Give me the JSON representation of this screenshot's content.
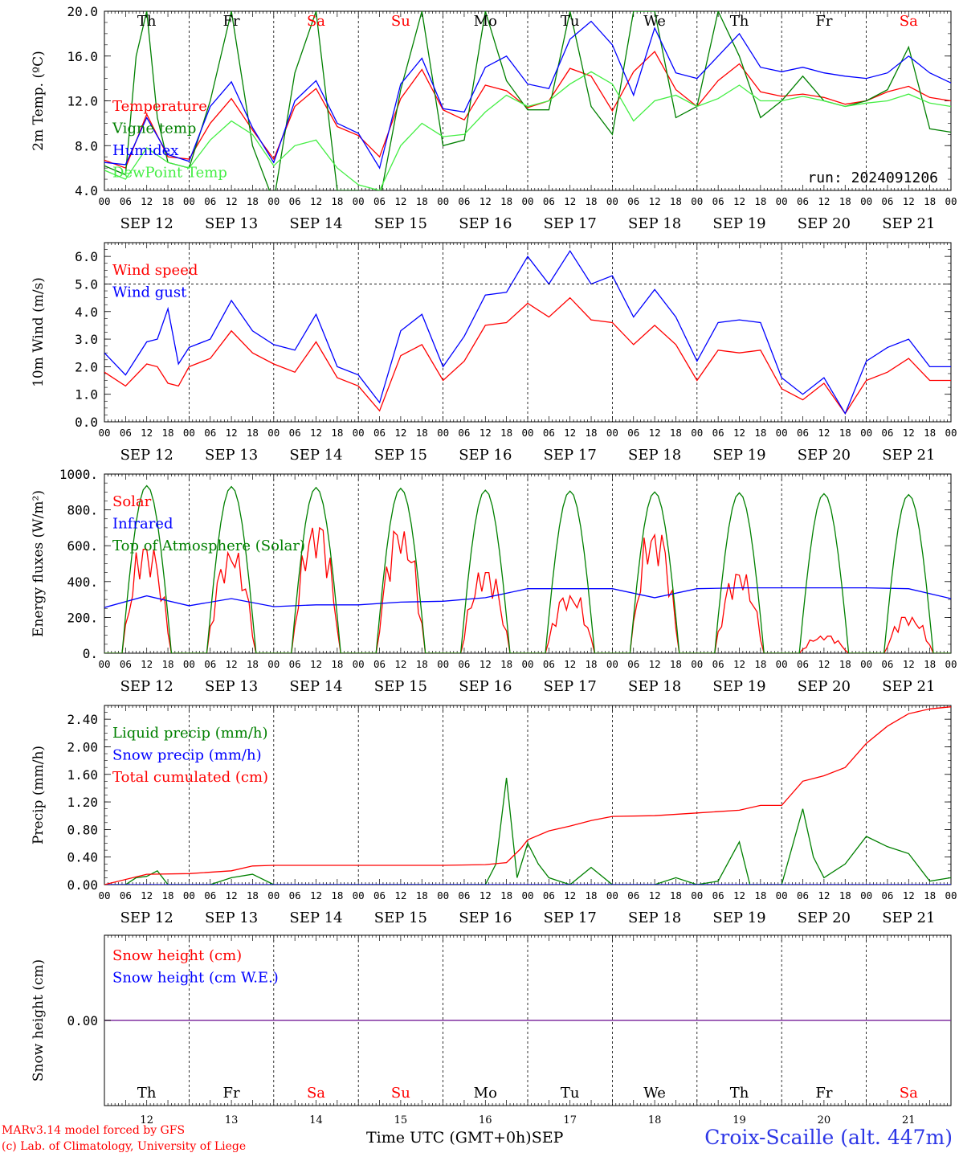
{
  "days": [
    "SEP 12",
    "SEP 13",
    "SEP 14",
    "SEP 15",
    "SEP 16",
    "SEP 17",
    "SEP 18",
    "SEP 19",
    "SEP 20",
    "SEP 21"
  ],
  "weekdays": [
    "Th",
    "Fr",
    "Sa",
    "Su",
    "Mo",
    "Tu",
    "We",
    "Th",
    "Fr",
    "Sa"
  ],
  "day_numbers": [
    "12",
    "13",
    "14",
    "15",
    "16",
    "17",
    "18",
    "19",
    "20",
    "21"
  ],
  "hour_labels": [
    "00",
    "06",
    "12",
    "18"
  ],
  "hour_label_end": "00",
  "run_label": "run: 2024091206",
  "footer": {
    "credit_line1": "MARv3.14 model forced by GFS",
    "credit_line2": "(c) Lab. of Climatology, University of Liege",
    "x_title": "Time UTC (GMT+0h)",
    "x_month": "SEP",
    "station": "Croix-Scaille (alt. 447m)"
  },
  "colors": {
    "red": "#ff0000",
    "green": "#008000",
    "blue": "#0000ff",
    "lightgreen": "#44ee44",
    "weekend": "#ff0000",
    "station": "#2c36e6",
    "snowline": "#8030a0"
  },
  "chart_data": [
    {
      "type": "line",
      "ylabel": "2m Temp. (ºC)",
      "ylim": [
        4,
        20
      ],
      "yticks": [
        "4.0",
        "8.0",
        "12.0",
        "16.0",
        "20.0"
      ],
      "x_unit": "hours since 2024-09-12 00 UTC",
      "series": [
        {
          "name": "Temperature",
          "color": "red",
          "x": [
            0,
            6,
            12,
            18,
            24,
            30,
            36,
            42,
            48,
            54,
            60,
            66,
            72,
            78,
            84,
            90,
            96,
            102,
            108,
            114,
            120,
            126,
            132,
            138,
            144,
            150,
            156,
            162,
            168,
            174,
            180,
            186,
            192,
            198,
            204,
            210,
            216,
            222,
            228,
            234,
            240
          ],
          "values": [
            6.7,
            6.0,
            10.8,
            7.0,
            6.8,
            10.0,
            12.2,
            9.4,
            6.8,
            11.5,
            13.1,
            9.7,
            8.9,
            7.0,
            12.2,
            14.8,
            11.2,
            10.3,
            13.4,
            12.9,
            11.4,
            12.0,
            14.9,
            14.2,
            11.1,
            14.6,
            16.4,
            13.0,
            11.5,
            13.8,
            15.3,
            12.8,
            12.4,
            12.6,
            12.3,
            11.7,
            12.0,
            12.8,
            13.3,
            12.3,
            12.0
          ]
        },
        {
          "name": "Vigne temp",
          "color": "green",
          "x": [
            0,
            6,
            9,
            12,
            15,
            18,
            24,
            30,
            36,
            42,
            48,
            54,
            60,
            66,
            72,
            78,
            84,
            90,
            96,
            102,
            108,
            114,
            120,
            126,
            132,
            138,
            144,
            150,
            156,
            162,
            168,
            174,
            180,
            186,
            192,
            198,
            204,
            210,
            216,
            222,
            228,
            234,
            240
          ],
          "values": [
            6.2,
            5.4,
            16.0,
            20.0,
            10.5,
            6.5,
            6.0,
            12.0,
            20.0,
            8.0,
            3.0,
            14.5,
            20.0,
            4.0,
            4.0,
            3.0,
            13.0,
            20.0,
            8.0,
            8.5,
            20.0,
            13.8,
            11.2,
            11.2,
            20.0,
            11.5,
            9.0,
            20.0,
            20.0,
            10.5,
            11.5,
            20.0,
            16.0,
            10.5,
            12.0,
            14.2,
            12.0,
            11.5,
            12.0,
            13.0,
            16.8,
            9.5,
            9.2
          ]
        },
        {
          "name": "Humidex",
          "color": "blue",
          "x": [
            0,
            6,
            12,
            18,
            24,
            30,
            36,
            42,
            48,
            54,
            60,
            66,
            72,
            78,
            84,
            90,
            96,
            102,
            108,
            114,
            120,
            126,
            132,
            138,
            144,
            150,
            156,
            162,
            168,
            174,
            180,
            186,
            192,
            198,
            204,
            210,
            216,
            222,
            228,
            234,
            240
          ],
          "values": [
            6.5,
            6.3,
            10.5,
            7.2,
            6.6,
            11.5,
            13.7,
            9.6,
            6.5,
            12.0,
            13.8,
            10.0,
            9.1,
            6.0,
            13.5,
            15.8,
            11.3,
            11.0,
            15.0,
            16.0,
            13.5,
            13.1,
            17.5,
            19.1,
            17.0,
            12.5,
            18.5,
            14.5,
            14.0,
            16.0,
            18.0,
            15.0,
            14.6,
            15.0,
            14.5,
            14.2,
            14.0,
            14.5,
            16.0,
            14.5,
            13.6
          ]
        },
        {
          "name": "DewPoint Temp",
          "color": "lightgreen",
          "x": [
            0,
            6,
            12,
            18,
            24,
            30,
            36,
            42,
            48,
            54,
            60,
            66,
            72,
            78,
            84,
            90,
            96,
            102,
            108,
            114,
            120,
            126,
            132,
            138,
            144,
            150,
            156,
            162,
            168,
            174,
            180,
            186,
            192,
            198,
            204,
            210,
            216,
            222,
            228,
            234,
            240
          ],
          "values": [
            5.8,
            5.0,
            7.8,
            6.5,
            6.0,
            8.5,
            10.2,
            9.0,
            6.2,
            8.0,
            8.5,
            6.0,
            4.5,
            4.0,
            8.0,
            10.0,
            8.8,
            9.0,
            11.0,
            12.5,
            11.5,
            12.0,
            13.5,
            14.6,
            13.5,
            10.2,
            12.0,
            12.5,
            11.5,
            12.2,
            13.4,
            12.0,
            12.0,
            12.4,
            12.0,
            11.5,
            11.8,
            12.0,
            12.6,
            11.8,
            11.5
          ]
        }
      ]
    },
    {
      "type": "line",
      "ylabel": "10m Wind (m/s)",
      "ylim": [
        0,
        6.5
      ],
      "yticks": [
        "0.0",
        "1.0",
        "2.0",
        "3.0",
        "4.0",
        "5.0",
        "6.0"
      ],
      "reference_line": 5.0,
      "series": [
        {
          "name": "Wind speed",
          "color": "red",
          "x": [
            0,
            6,
            12,
            15,
            18,
            21,
            24,
            30,
            36,
            42,
            48,
            54,
            60,
            66,
            72,
            78,
            84,
            90,
            96,
            102,
            108,
            114,
            120,
            126,
            132,
            138,
            144,
            150,
            156,
            162,
            168,
            174,
            180,
            186,
            192,
            198,
            204,
            210,
            216,
            222,
            228,
            234,
            240
          ],
          "values": [
            1.8,
            1.3,
            2.1,
            2.0,
            1.4,
            1.3,
            2.0,
            2.3,
            3.3,
            2.5,
            2.1,
            1.8,
            2.9,
            1.6,
            1.3,
            0.4,
            2.4,
            2.8,
            1.5,
            2.2,
            3.5,
            3.6,
            4.3,
            3.8,
            4.5,
            3.7,
            3.6,
            2.8,
            3.5,
            2.8,
            1.5,
            2.6,
            2.5,
            2.6,
            1.2,
            0.8,
            1.4,
            0.3,
            1.5,
            1.8,
            2.3,
            1.5,
            1.5
          ]
        },
        {
          "name": "Wind gust",
          "color": "blue",
          "x": [
            0,
            6,
            12,
            15,
            18,
            21,
            24,
            30,
            36,
            42,
            48,
            54,
            60,
            66,
            72,
            78,
            84,
            90,
            96,
            102,
            108,
            114,
            120,
            126,
            132,
            138,
            144,
            150,
            156,
            162,
            168,
            174,
            180,
            186,
            192,
            198,
            204,
            210,
            216,
            222,
            228,
            234,
            240
          ],
          "values": [
            2.5,
            1.7,
            2.9,
            3.0,
            4.1,
            2.1,
            2.7,
            3.0,
            4.4,
            3.3,
            2.8,
            2.6,
            3.9,
            2.0,
            1.7,
            0.7,
            3.3,
            3.9,
            2.0,
            3.1,
            4.6,
            4.7,
            6.0,
            5.0,
            6.2,
            5.0,
            5.3,
            3.8,
            4.8,
            3.8,
            2.2,
            3.6,
            3.7,
            3.6,
            1.6,
            1.0,
            1.6,
            0.3,
            2.2,
            2.7,
            3.0,
            2.0,
            2.0
          ]
        }
      ]
    },
    {
      "type": "line",
      "ylabel": "Energy fluxes (W/m²)",
      "ylim": [
        0,
        1000
      ],
      "yticks": [
        "0.",
        "200.",
        "400.",
        "600.",
        "800.",
        "1000."
      ],
      "series": [
        {
          "name": "Solar",
          "color": "red",
          "peaks": [
            580,
            560,
            700,
            680,
            450,
            320,
            660,
            440,
            95,
            200
          ]
        },
        {
          "name": "Infrared",
          "color": "blue",
          "x": [
            0,
            12,
            24,
            36,
            48,
            60,
            72,
            84,
            96,
            108,
            120,
            132,
            144,
            156,
            168,
            180,
            192,
            204,
            216,
            228,
            240
          ],
          "values": [
            255,
            320,
            265,
            305,
            260,
            270,
            270,
            285,
            290,
            310,
            360,
            360,
            360,
            310,
            360,
            365,
            365,
            365,
            365,
            360,
            305
          ]
        },
        {
          "name": "Top of Atmosphere (Solar)",
          "color": "green",
          "peaks": [
            935,
            930,
            925,
            920,
            910,
            905,
            900,
            895,
            890,
            885
          ]
        }
      ]
    },
    {
      "type": "line",
      "ylabel": "Precip (mm/h)",
      "ylim": [
        0,
        2.6
      ],
      "yticks": [
        "0.00",
        "0.40",
        "0.80",
        "1.20",
        "1.60",
        "2.00",
        "2.40"
      ],
      "series": [
        {
          "name": "Liquid precip (mm/h)",
          "color": "green",
          "x": [
            0,
            6,
            9,
            12,
            15,
            18,
            24,
            30,
            36,
            42,
            48,
            96,
            108,
            111,
            114,
            117,
            120,
            123,
            126,
            129,
            132,
            138,
            144,
            150,
            156,
            162,
            168,
            174,
            180,
            183,
            186,
            192,
            198,
            201,
            204,
            210,
            216,
            222,
            228,
            234,
            240
          ],
          "values": [
            0,
            0,
            0.1,
            0.12,
            0.2,
            0,
            0,
            0,
            0.1,
            0.15,
            0,
            0,
            0,
            0.3,
            1.55,
            0.1,
            0.6,
            0.3,
            0.1,
            0.05,
            0,
            0.25,
            0,
            0,
            0,
            0.1,
            0,
            0.05,
            0.62,
            0,
            0,
            0,
            1.1,
            0.4,
            0.1,
            0.3,
            0.7,
            0.55,
            0.45,
            0.05,
            0.1
          ]
        },
        {
          "name": "Snow precip (mm/h)",
          "color": "blue",
          "x": [
            0,
            240
          ],
          "values": [
            0,
            0
          ]
        },
        {
          "name": "Total cumulated (cm)",
          "color": "red",
          "x": [
            0,
            12,
            24,
            36,
            42,
            48,
            96,
            108,
            114,
            118,
            120,
            126,
            132,
            138,
            144,
            156,
            168,
            180,
            186,
            192,
            198,
            204,
            210,
            216,
            222,
            228,
            234,
            240
          ],
          "values": [
            0,
            0.15,
            0.16,
            0.2,
            0.27,
            0.28,
            0.28,
            0.29,
            0.32,
            0.52,
            0.65,
            0.78,
            0.85,
            0.93,
            0.99,
            1.0,
            1.04,
            1.08,
            1.15,
            1.15,
            1.5,
            1.58,
            1.7,
            2.05,
            2.3,
            2.48,
            2.55,
            2.58
          ]
        }
      ]
    },
    {
      "type": "line",
      "ylabel": "Snow height (cm)",
      "yticks": [
        "0.00"
      ],
      "series": [
        {
          "name": "Snow height (cm)",
          "color": "red",
          "x": [
            0,
            240
          ],
          "values": [
            0,
            0
          ]
        },
        {
          "name": "Snow height (cm W.E.)",
          "color": "blue",
          "x": [
            0,
            240
          ],
          "values": [
            0,
            0
          ]
        }
      ]
    }
  ]
}
